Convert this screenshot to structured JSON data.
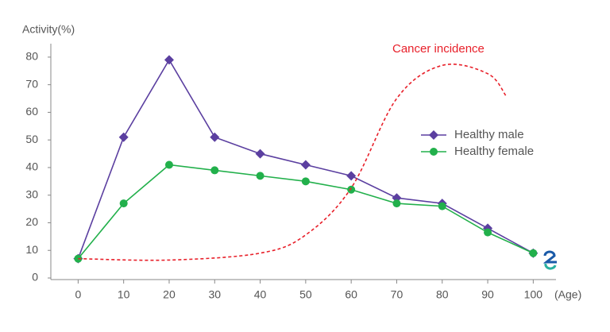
{
  "chart_data": {
    "type": "line",
    "ylabel": "Activity(%)",
    "xlabel": "(Age)",
    "x": [
      0,
      10,
      20,
      30,
      40,
      50,
      60,
      70,
      80,
      90,
      100
    ],
    "series": [
      {
        "name": "Healthy male",
        "color": "#5b3fa0",
        "marker": "diamond",
        "values": [
          7,
          51,
          79,
          51,
          45,
          41,
          37,
          29,
          27,
          18,
          9
        ]
      },
      {
        "name": "Healthy female",
        "color": "#22b04b",
        "marker": "circle",
        "values": [
          7,
          27,
          41,
          39,
          37,
          35,
          32,
          27,
          26,
          16.5,
          9
        ]
      },
      {
        "name": "Cancer incidence",
        "color": "#e8202a",
        "dashed": true,
        "x": [
          0,
          20,
          40,
          50,
          60,
          70,
          80,
          90,
          94
        ],
        "values": [
          7,
          6.5,
          9,
          15.6,
          32.6,
          65,
          77,
          74,
          66
        ]
      }
    ],
    "xlim": [
      -6,
      105
    ],
    "xticks": [
      0,
      10,
      20,
      30,
      40,
      50,
      60,
      70,
      80,
      90,
      100
    ],
    "ylim": [
      0,
      84
    ],
    "yticks": [
      0,
      10,
      20,
      30,
      40,
      50,
      60,
      70,
      80
    ],
    "legend": "right"
  }
}
